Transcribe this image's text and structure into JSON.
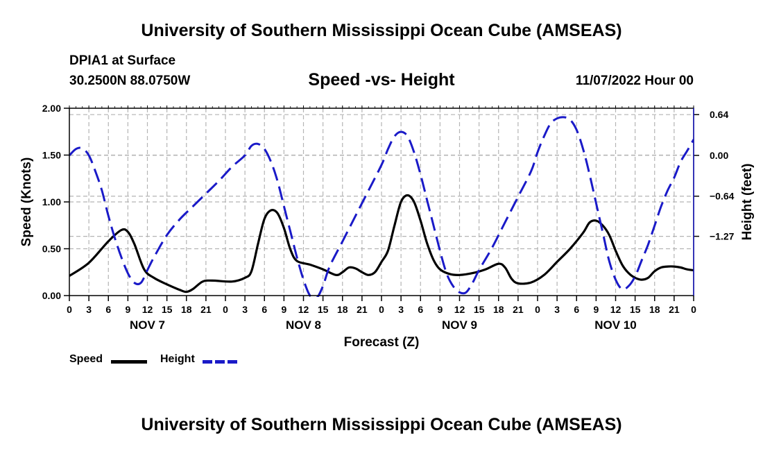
{
  "header": {
    "title": "University of Southern Mississippi Ocean Cube (AMSEAS)",
    "station": "DPIA1 at Surface",
    "coords": "30.2500N  88.0750W",
    "subtitle": "Speed -vs- Height",
    "date": "11/07/2022 Hour 00"
  },
  "footer": {
    "title": "University of Southern Mississippi Ocean Cube (AMSEAS)"
  },
  "legend": {
    "speed_label": "Speed",
    "height_label": "Height"
  },
  "colors": {
    "speed": "#000000",
    "height": "#1a1ac8",
    "grid": "#b4b4b4"
  },
  "chart_data": {
    "type": "line",
    "title": "Speed -vs- Height",
    "xlabel": "Forecast (Z)",
    "ylabel": "Speed (Knots)",
    "y2label": "Height (feet)",
    "xlim": [
      0,
      96
    ],
    "ylim": [
      0,
      2
    ],
    "y2lim": [
      -2.2,
      0.74
    ],
    "x_tick_step": 3,
    "x_tick_labels": [
      "0",
      "3",
      "6",
      "9",
      "12",
      "15",
      "18",
      "21",
      "0",
      "3",
      "6",
      "9",
      "12",
      "15",
      "18",
      "21",
      "0",
      "3",
      "6",
      "9",
      "12",
      "15",
      "18",
      "21",
      "0",
      "3",
      "6",
      "9",
      "12",
      "15",
      "18",
      "21",
      "0"
    ],
    "date_labels": [
      {
        "hour": 12,
        "label": "NOV 7"
      },
      {
        "hour": 36,
        "label": "NOV 8"
      },
      {
        "hour": 60,
        "label": "NOV 9"
      },
      {
        "hour": 84,
        "label": "NOV 10"
      }
    ],
    "y_ticks": [
      0,
      0.5,
      1,
      1.5,
      2
    ],
    "y_tick_labels": [
      "0.00",
      "0.50",
      "1.00",
      "1.50",
      "2.00"
    ],
    "y2_ticks": [
      0.64,
      0.0,
      -0.64,
      -1.27
    ],
    "y2_tick_labels": [
      "0.64",
      "0.00",
      "−0.64",
      "−1.27"
    ],
    "series": [
      {
        "name": "Speed",
        "axis": "left",
        "style": "solid",
        "points": [
          [
            0,
            0.21
          ],
          [
            3,
            0.35
          ],
          [
            6,
            0.58
          ],
          [
            8,
            0.7
          ],
          [
            9,
            0.68
          ],
          [
            10,
            0.55
          ],
          [
            11.5,
            0.28
          ],
          [
            13,
            0.19
          ],
          [
            15,
            0.12
          ],
          [
            17,
            0.06
          ],
          [
            18,
            0.04
          ],
          [
            19,
            0.07
          ],
          [
            20.5,
            0.15
          ],
          [
            22,
            0.16
          ],
          [
            25,
            0.15
          ],
          [
            27,
            0.19
          ],
          [
            28,
            0.26
          ],
          [
            29,
            0.55
          ],
          [
            30,
            0.82
          ],
          [
            31,
            0.91
          ],
          [
            32,
            0.88
          ],
          [
            33,
            0.72
          ],
          [
            34,
            0.49
          ],
          [
            35,
            0.37
          ],
          [
            37,
            0.33
          ],
          [
            39,
            0.28
          ],
          [
            41,
            0.22
          ],
          [
            42,
            0.25
          ],
          [
            43,
            0.3
          ],
          [
            44,
            0.29
          ],
          [
            45,
            0.25
          ],
          [
            46,
            0.22
          ],
          [
            47,
            0.25
          ],
          [
            48,
            0.36
          ],
          [
            49,
            0.48
          ],
          [
            50,
            0.75
          ],
          [
            51,
            1.0
          ],
          [
            52,
            1.07
          ],
          [
            53,
            1.0
          ],
          [
            54,
            0.8
          ],
          [
            55,
            0.56
          ],
          [
            56,
            0.38
          ],
          [
            57,
            0.28
          ],
          [
            58.5,
            0.23
          ],
          [
            60,
            0.22
          ],
          [
            62,
            0.24
          ],
          [
            64,
            0.28
          ],
          [
            66,
            0.34
          ],
          [
            67,
            0.3
          ],
          [
            68,
            0.18
          ],
          [
            69,
            0.13
          ],
          [
            71,
            0.14
          ],
          [
            73,
            0.22
          ],
          [
            75,
            0.36
          ],
          [
            77,
            0.5
          ],
          [
            79,
            0.67
          ],
          [
            80,
            0.78
          ],
          [
            81,
            0.8
          ],
          [
            82,
            0.75
          ],
          [
            83,
            0.65
          ],
          [
            84,
            0.48
          ],
          [
            85,
            0.33
          ],
          [
            86,
            0.24
          ],
          [
            87,
            0.19
          ],
          [
            88,
            0.17
          ],
          [
            89,
            0.19
          ],
          [
            90,
            0.26
          ],
          [
            91,
            0.3
          ],
          [
            92,
            0.31
          ],
          [
            93,
            0.31
          ],
          [
            94,
            0.3
          ],
          [
            95,
            0.28
          ],
          [
            96,
            0.27
          ]
        ]
      },
      {
        "name": "Height",
        "axis": "right",
        "style": "dashed",
        "points": [
          [
            0,
            0.0
          ],
          [
            1,
            0.1
          ],
          [
            2,
            0.11
          ],
          [
            3,
            0.0
          ],
          [
            4,
            -0.25
          ],
          [
            5,
            -0.55
          ],
          [
            6,
            -0.95
          ],
          [
            7,
            -1.3
          ],
          [
            8,
            -1.6
          ],
          [
            9,
            -1.85
          ],
          [
            10,
            -2.0
          ],
          [
            11,
            -2.0
          ],
          [
            12,
            -1.8
          ],
          [
            13,
            -1.6
          ],
          [
            15,
            -1.25
          ],
          [
            17,
            -1.0
          ],
          [
            19,
            -0.8
          ],
          [
            21,
            -0.6
          ],
          [
            23,
            -0.4
          ],
          [
            25,
            -0.18
          ],
          [
            27,
            0.0
          ],
          [
            28,
            0.15
          ],
          [
            29,
            0.18
          ],
          [
            30,
            0.1
          ],
          [
            31,
            -0.1
          ],
          [
            32,
            -0.4
          ],
          [
            33,
            -0.8
          ],
          [
            34,
            -1.2
          ],
          [
            35,
            -1.6
          ],
          [
            36,
            -1.95
          ],
          [
            37,
            -2.2
          ],
          [
            38,
            -2.24
          ],
          [
            39,
            -2.05
          ],
          [
            40,
            -1.75
          ],
          [
            42,
            -1.35
          ],
          [
            44,
            -0.95
          ],
          [
            46,
            -0.55
          ],
          [
            48,
            -0.15
          ],
          [
            49,
            0.1
          ],
          [
            50,
            0.3
          ],
          [
            51,
            0.37
          ],
          [
            52,
            0.3
          ],
          [
            53,
            0.05
          ],
          [
            54,
            -0.3
          ],
          [
            55,
            -0.7
          ],
          [
            56,
            -1.1
          ],
          [
            57,
            -1.5
          ],
          [
            58,
            -1.85
          ],
          [
            59,
            -2.05
          ],
          [
            60,
            -2.15
          ],
          [
            61,
            -2.15
          ],
          [
            62,
            -2.0
          ],
          [
            63,
            -1.8
          ],
          [
            65,
            -1.45
          ],
          [
            67,
            -1.05
          ],
          [
            69,
            -0.65
          ],
          [
            71,
            -0.25
          ],
          [
            72,
            0.05
          ],
          [
            73,
            0.3
          ],
          [
            74,
            0.5
          ],
          [
            75,
            0.58
          ],
          [
            76,
            0.6
          ],
          [
            77,
            0.56
          ],
          [
            78,
            0.4
          ],
          [
            79,
            0.1
          ],
          [
            80,
            -0.3
          ],
          [
            81,
            -0.75
          ],
          [
            82,
            -1.2
          ],
          [
            83,
            -1.65
          ],
          [
            84,
            -1.95
          ],
          [
            85,
            -2.1
          ],
          [
            86,
            -2.05
          ],
          [
            87,
            -1.9
          ],
          [
            88,
            -1.65
          ],
          [
            89,
            -1.4
          ],
          [
            90,
            -1.1
          ],
          [
            91,
            -0.8
          ],
          [
            92,
            -0.55
          ],
          [
            93,
            -0.35
          ],
          [
            94,
            -0.1
          ],
          [
            95,
            0.07
          ],
          [
            96,
            0.25
          ]
        ]
      }
    ]
  }
}
